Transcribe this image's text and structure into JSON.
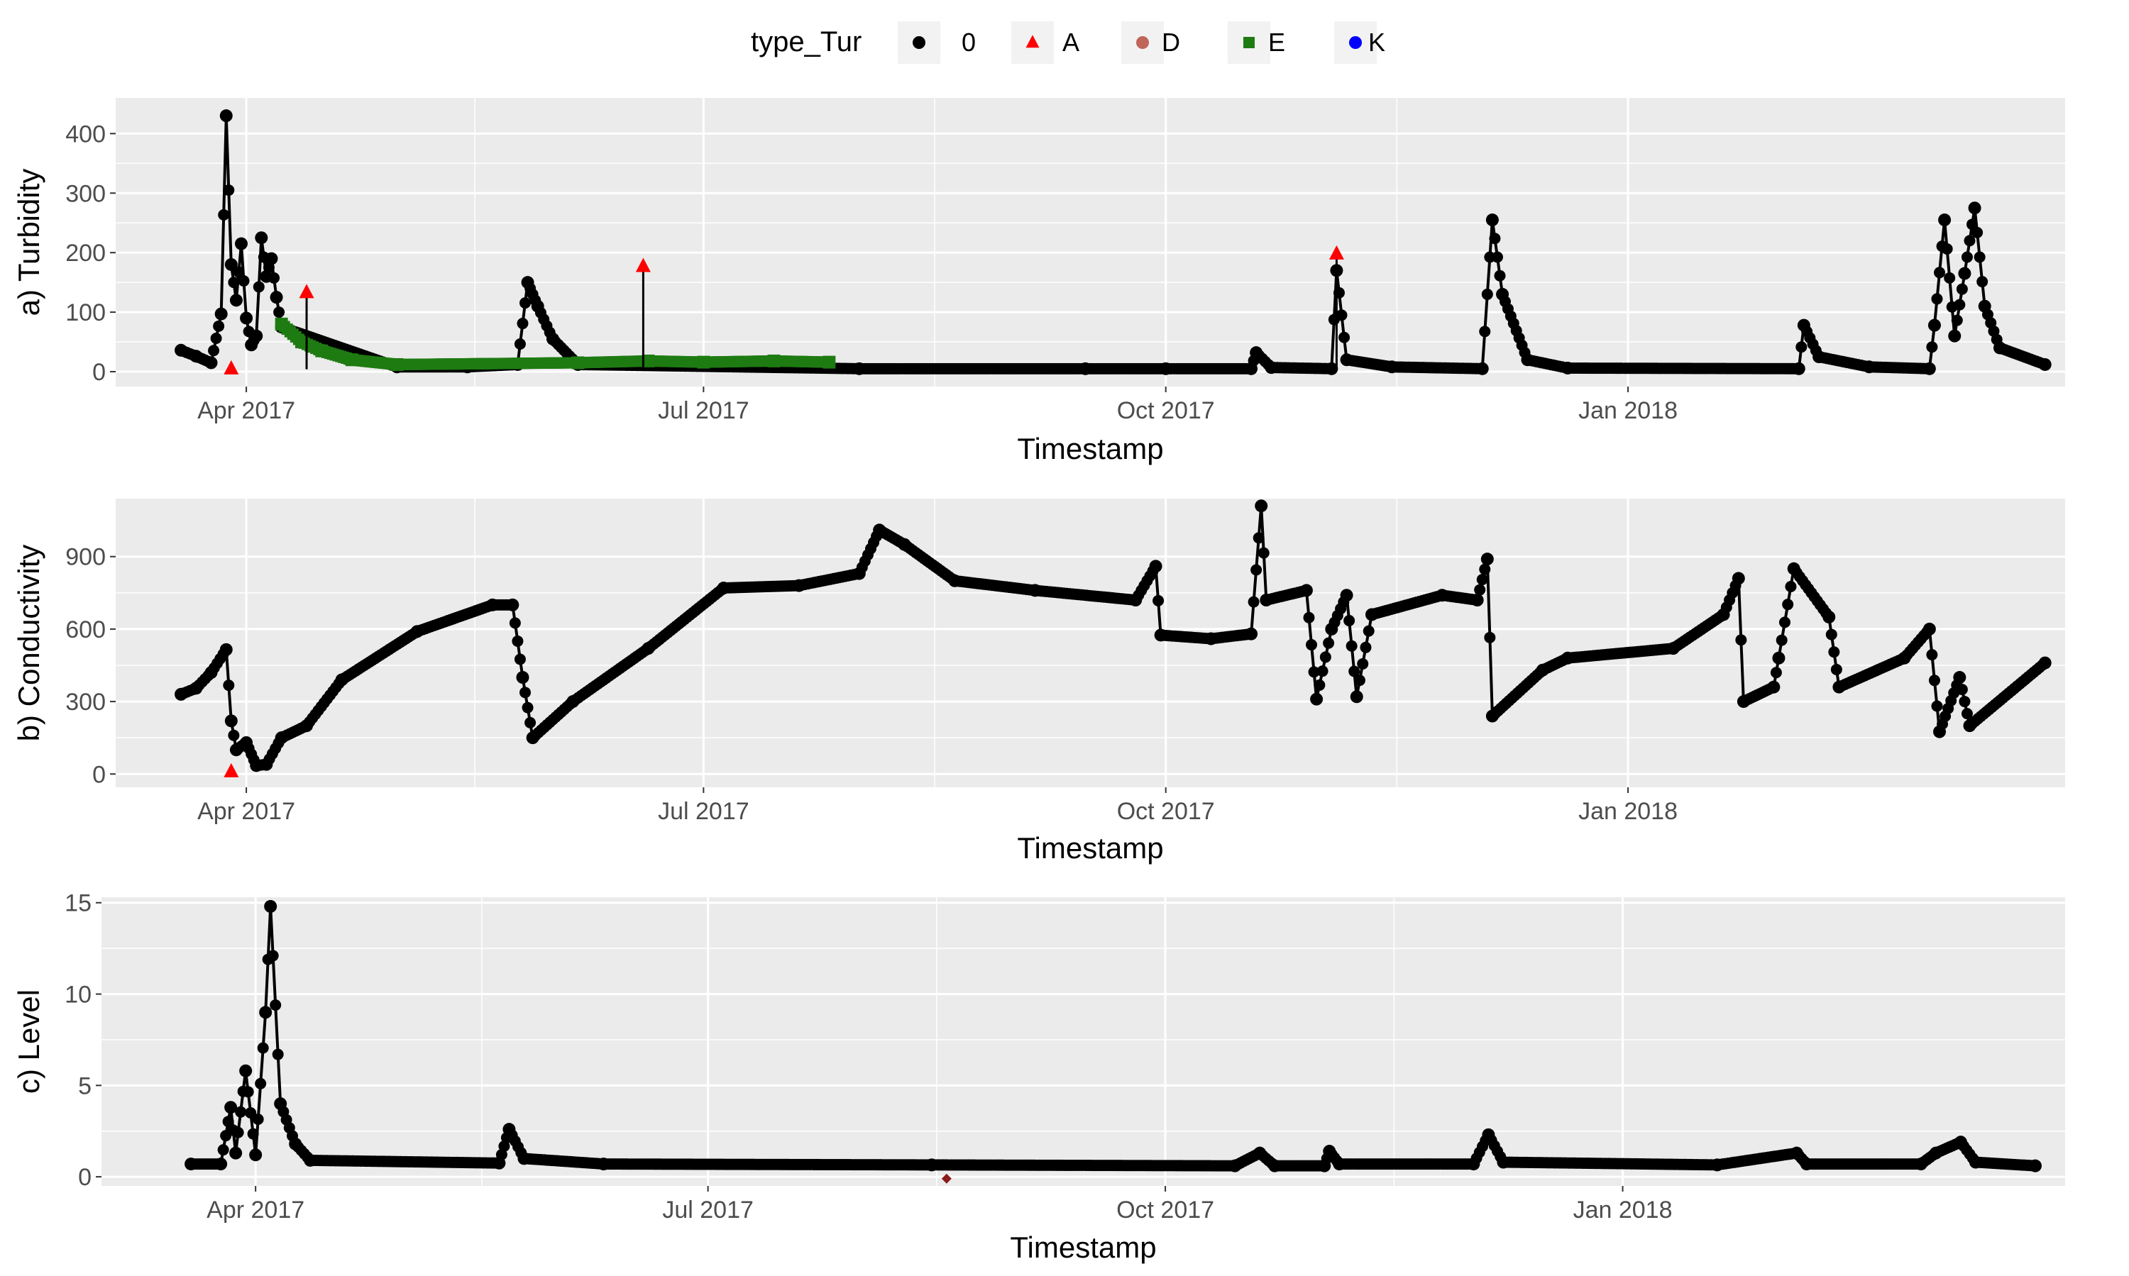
{
  "legend": {
    "title": "type_Tur",
    "entries": [
      {
        "label": "0",
        "shape": "circle",
        "color": "#000000"
      },
      {
        "label": "A",
        "shape": "triangle",
        "color": "#ff0000"
      },
      {
        "label": "D",
        "shape": "circle",
        "color": "#c0655a"
      },
      {
        "label": "E",
        "shape": "square",
        "color": "#1e7b12"
      },
      {
        "label": "K",
        "shape": "circle",
        "color": "#0000ff"
      }
    ]
  },
  "colors": {
    "panel_bg": "#ebebeb",
    "grid": "#ffffff",
    "normal": "#000000",
    "A": "#ff0000",
    "D": "#c0655a",
    "E": "#1e7b12"
  },
  "chart_data": [
    {
      "type": "scatter",
      "ylabel": "a) Turbidity",
      "xlabel": "Timestamp",
      "xlim": [
        "2017-03-06",
        "2018-03-29"
      ],
      "ylim": [
        -25,
        460
      ],
      "yticks": [
        0,
        100,
        200,
        300,
        400
      ],
      "xticks": [
        {
          "date": "2017-04-01",
          "label": "Apr 2017"
        },
        {
          "date": "2017-07-01",
          "label": "Jul 2017"
        },
        {
          "date": "2017-10-01",
          "label": "Oct 2017"
        },
        {
          "date": "2018-01-01",
          "label": "Jan 2018"
        }
      ],
      "baseline": [
        [
          "2017-03-19",
          36
        ],
        [
          "2017-03-22",
          26
        ],
        [
          "2017-03-25",
          15
        ],
        [
          "2017-03-27",
          97
        ],
        [
          "2017-03-28",
          430
        ],
        [
          "2017-03-29",
          180
        ],
        [
          "2017-03-30",
          120
        ],
        [
          "2017-03-31",
          215
        ],
        [
          "2017-04-01",
          90
        ],
        [
          "2017-04-02",
          45
        ],
        [
          "2017-04-03",
          60
        ],
        [
          "2017-04-04",
          225
        ],
        [
          "2017-04-05",
          160
        ],
        [
          "2017-04-06",
          190
        ],
        [
          "2017-04-07",
          125
        ],
        [
          "2017-04-08",
          75
        ],
        [
          "2017-05-01",
          8
        ],
        [
          "2017-05-15",
          8
        ],
        [
          "2017-05-25",
          12
        ],
        [
          "2017-05-27",
          150
        ],
        [
          "2017-05-29",
          110
        ],
        [
          "2017-06-01",
          55
        ],
        [
          "2017-06-06",
          12
        ],
        [
          "2017-08-01",
          5
        ],
        [
          "2017-09-15",
          5
        ],
        [
          "2017-10-01",
          5
        ],
        [
          "2017-10-18",
          5
        ],
        [
          "2017-10-19",
          32
        ],
        [
          "2017-10-22",
          7
        ],
        [
          "2017-11-03",
          5
        ],
        [
          "2017-11-04",
          170
        ],
        [
          "2017-11-06",
          20
        ],
        [
          "2017-11-15",
          8
        ],
        [
          "2017-12-03",
          5
        ],
        [
          "2017-12-05",
          255
        ],
        [
          "2017-12-07",
          130
        ],
        [
          "2017-12-12",
          20
        ],
        [
          "2017-12-20",
          6
        ],
        [
          "2018-02-04",
          5
        ],
        [
          "2018-02-05",
          78
        ],
        [
          "2018-02-08",
          25
        ],
        [
          "2018-02-18",
          8
        ],
        [
          "2018-03-02",
          5
        ],
        [
          "2018-03-03",
          78
        ],
        [
          "2018-03-05",
          255
        ],
        [
          "2018-03-07",
          60
        ],
        [
          "2018-03-09",
          165
        ],
        [
          "2018-03-11",
          275
        ],
        [
          "2018-03-13",
          110
        ],
        [
          "2018-03-16",
          40
        ],
        [
          "2018-03-25",
          12
        ]
      ],
      "series_E": [
        [
          "2017-04-08",
          80
        ],
        [
          "2017-04-12",
          50
        ],
        [
          "2017-04-16",
          35
        ],
        [
          "2017-04-22",
          20
        ],
        [
          "2017-05-01",
          12
        ],
        [
          "2017-06-06",
          15
        ],
        [
          "2017-06-20",
          18
        ],
        [
          "2017-07-01",
          16
        ],
        [
          "2017-07-15",
          18
        ],
        [
          "2017-07-26",
          16
        ]
      ],
      "flags_A": [
        [
          "2017-03-29",
          5
        ],
        [
          "2017-04-13",
          133
        ],
        [
          "2017-06-19",
          177
        ],
        [
          "2017-11-04",
          198
        ]
      ]
    },
    {
      "type": "scatter",
      "ylabel": "b) Conductivity",
      "xlabel": "Timestamp",
      "xlim": [
        "2017-03-06",
        "2018-03-29"
      ],
      "ylim": [
        -55,
        1140
      ],
      "yticks": [
        0,
        300,
        600,
        900
      ],
      "xticks": [
        {
          "date": "2017-04-01",
          "label": "Apr 2017"
        },
        {
          "date": "2017-07-01",
          "label": "Jul 2017"
        },
        {
          "date": "2017-10-01",
          "label": "Oct 2017"
        },
        {
          "date": "2018-01-01",
          "label": "Jan 2018"
        }
      ],
      "baseline": [
        [
          "2017-03-19",
          330
        ],
        [
          "2017-03-22",
          355
        ],
        [
          "2017-03-25",
          420
        ],
        [
          "2017-03-28",
          515
        ],
        [
          "2017-03-29",
          220
        ],
        [
          "2017-03-30",
          100
        ],
        [
          "2017-04-01",
          130
        ],
        [
          "2017-04-03",
          35
        ],
        [
          "2017-04-05",
          40
        ],
        [
          "2017-04-08",
          150
        ],
        [
          "2017-04-13",
          200
        ],
        [
          "2017-04-20",
          390
        ],
        [
          "2017-05-05",
          590
        ],
        [
          "2017-05-20",
          700
        ],
        [
          "2017-05-24",
          700
        ],
        [
          "2017-05-26",
          400
        ],
        [
          "2017-05-28",
          150
        ],
        [
          "2017-06-05",
          300
        ],
        [
          "2017-06-20",
          520
        ],
        [
          "2017-07-05",
          770
        ],
        [
          "2017-07-20",
          780
        ],
        [
          "2017-08-01",
          830
        ],
        [
          "2017-08-05",
          1010
        ],
        [
          "2017-08-10",
          950
        ],
        [
          "2017-08-20",
          800
        ],
        [
          "2017-09-05",
          760
        ],
        [
          "2017-09-25",
          720
        ],
        [
          "2017-09-29",
          860
        ],
        [
          "2017-09-30",
          575
        ],
        [
          "2017-10-10",
          560
        ],
        [
          "2017-10-18",
          580
        ],
        [
          "2017-10-20",
          1110
        ],
        [
          "2017-10-21",
          720
        ],
        [
          "2017-10-29",
          760
        ],
        [
          "2017-10-31",
          310
        ],
        [
          "2017-11-03",
          600
        ],
        [
          "2017-11-06",
          740
        ],
        [
          "2017-11-08",
          320
        ],
        [
          "2017-11-11",
          660
        ],
        [
          "2017-11-25",
          740
        ],
        [
          "2017-12-02",
          720
        ],
        [
          "2017-12-04",
          890
        ],
        [
          "2017-12-05",
          240
        ],
        [
          "2017-12-15",
          430
        ],
        [
          "2017-12-20",
          480
        ],
        [
          "2018-01-10",
          520
        ],
        [
          "2018-01-20",
          660
        ],
        [
          "2018-01-23",
          810
        ],
        [
          "2018-01-24",
          300
        ],
        [
          "2018-01-30",
          360
        ],
        [
          "2018-01-31",
          480
        ],
        [
          "2018-02-03",
          850
        ],
        [
          "2018-02-10",
          650
        ],
        [
          "2018-02-12",
          360
        ],
        [
          "2018-02-25",
          480
        ],
        [
          "2018-03-02",
          600
        ],
        [
          "2018-03-04",
          175
        ],
        [
          "2018-03-08",
          400
        ],
        [
          "2018-03-10",
          200
        ],
        [
          "2018-03-25",
          460
        ]
      ],
      "flags_A": [
        [
          "2017-03-29",
          10
        ]
      ]
    },
    {
      "type": "scatter",
      "ylabel": "c) Level",
      "xlabel": "Timestamp",
      "xlim": [
        "2017-03-01",
        "2018-03-31"
      ],
      "ylim": [
        -0.5,
        15.3
      ],
      "yticks": [
        0,
        5,
        10,
        15
      ],
      "xticks": [
        {
          "date": "2017-04-01",
          "label": "Apr 2017"
        },
        {
          "date": "2017-07-01",
          "label": "Jul 2017"
        },
        {
          "date": "2017-10-01",
          "label": "Oct 2017"
        },
        {
          "date": "2018-01-01",
          "label": "Jan 2018"
        }
      ],
      "baseline": [
        [
          "2017-03-19",
          0.7
        ],
        [
          "2017-03-25",
          0.7
        ],
        [
          "2017-03-27",
          3.8
        ],
        [
          "2017-03-28",
          1.3
        ],
        [
          "2017-03-30",
          5.8
        ],
        [
          "2017-04-01",
          1.2
        ],
        [
          "2017-04-03",
          9.0
        ],
        [
          "2017-04-04",
          14.8
        ],
        [
          "2017-04-06",
          4.0
        ],
        [
          "2017-04-09",
          1.8
        ],
        [
          "2017-04-12",
          0.9
        ],
        [
          "2017-05-20",
          0.75
        ],
        [
          "2017-05-22",
          2.6
        ],
        [
          "2017-05-25",
          1.0
        ],
        [
          "2017-06-10",
          0.7
        ],
        [
          "2017-08-15",
          0.65
        ],
        [
          "2017-10-15",
          0.6
        ],
        [
          "2017-10-20",
          1.3
        ],
        [
          "2017-10-23",
          0.6
        ],
        [
          "2017-11-02",
          0.6
        ],
        [
          "2017-11-03",
          1.4
        ],
        [
          "2017-11-05",
          0.7
        ],
        [
          "2017-12-02",
          0.7
        ],
        [
          "2017-12-05",
          2.3
        ],
        [
          "2017-12-08",
          0.8
        ],
        [
          "2018-01-20",
          0.65
        ],
        [
          "2018-02-05",
          1.3
        ],
        [
          "2018-02-07",
          0.7
        ],
        [
          "2018-03-02",
          0.7
        ],
        [
          "2018-03-05",
          1.3
        ],
        [
          "2018-03-10",
          1.9
        ],
        [
          "2018-03-13",
          0.8
        ],
        [
          "2018-03-25",
          0.6
        ]
      ],
      "flags_D": [
        [
          "2017-08-18",
          -0.1
        ]
      ]
    }
  ]
}
